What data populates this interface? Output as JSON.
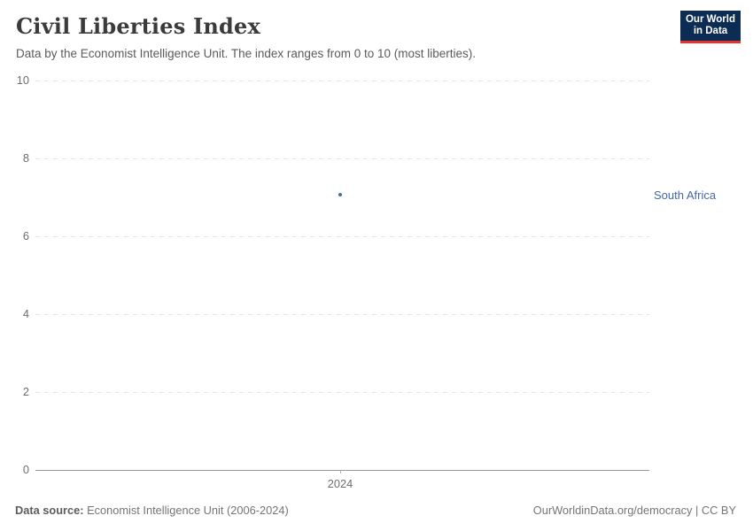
{
  "header": {
    "title": "Civil Liberties Index",
    "subtitle": "Data by the Economist Intelligence Unit. The index ranges from 0 to 10 (most liberties).",
    "logo": {
      "line1": "Our World",
      "line2": "in Data",
      "bg_color": "#0d2c54",
      "accent_color": "#e0342c"
    }
  },
  "chart_data": {
    "type": "scatter",
    "title": "Civil Liberties Index",
    "subtitle": "Data by the Economist Intelligence Unit. The index ranges from 0 to 10 (most liberties).",
    "series": [
      {
        "name": "South Africa",
        "color": "#4c6a9c",
        "points": [
          {
            "x": 2024,
            "y": 7.06
          }
        ]
      }
    ],
    "entity_label": "South Africa",
    "entity_label_color": "#4668a5",
    "xticks": [
      2024
    ],
    "yticks": [
      0,
      2,
      4,
      6,
      8,
      10
    ],
    "ylim": [
      0,
      10
    ],
    "xlabel": "",
    "ylabel": "",
    "grid": "horizontal-dashed",
    "legend_position": "right-of-plot"
  },
  "footer": {
    "source_label": "Data source:",
    "source_text": "Economist Intelligence Unit (2006-2024)",
    "credit": "OurWorldinData.org/democracy | CC BY"
  }
}
